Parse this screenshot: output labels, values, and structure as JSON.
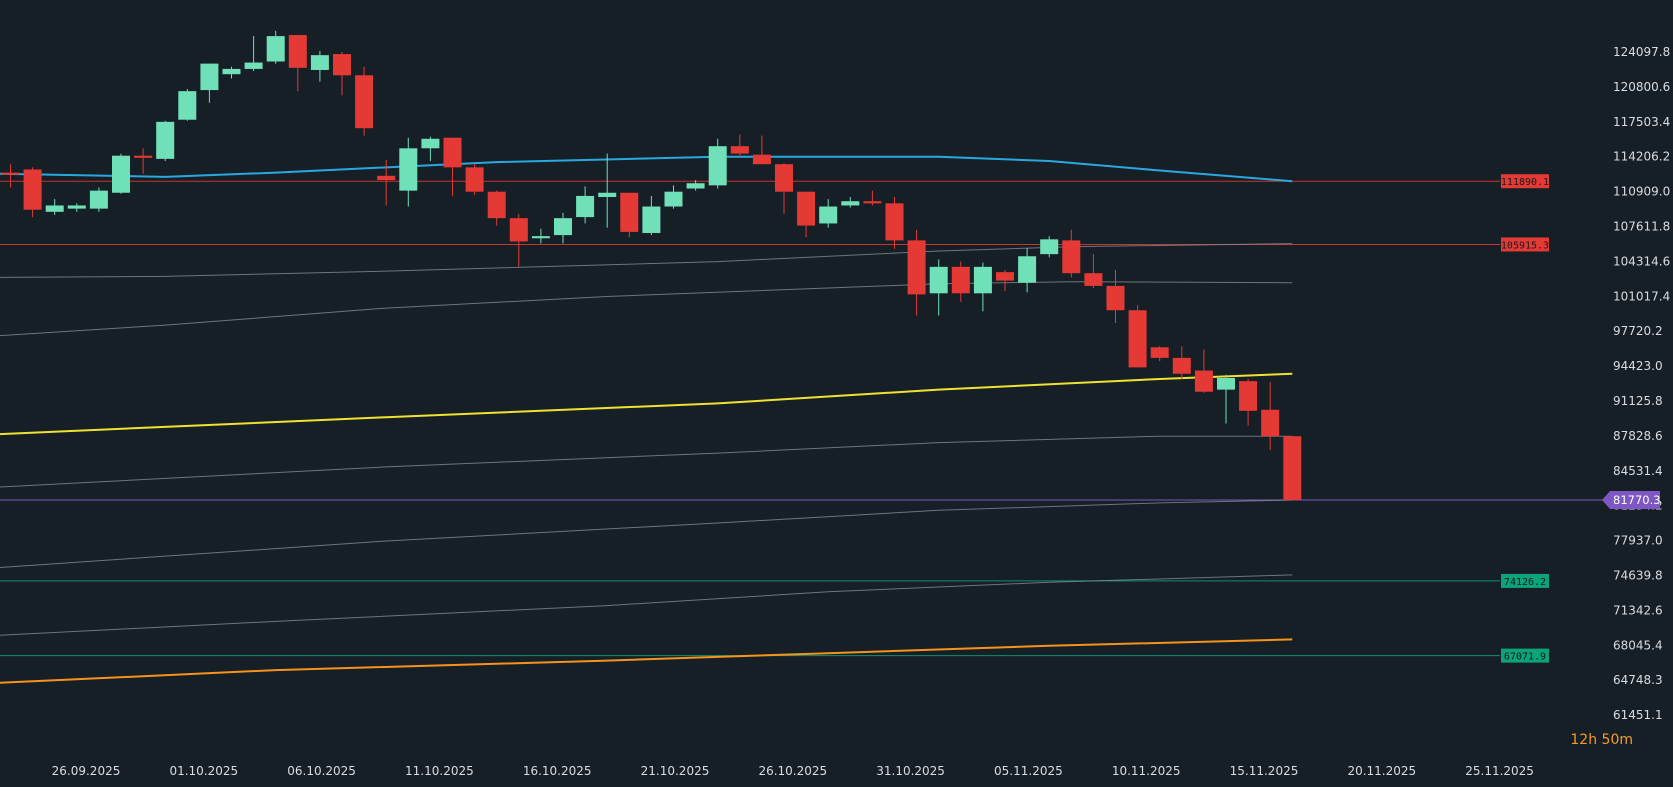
{
  "chart_data": {
    "type": "candlestick",
    "x_axis_labels": [
      "26.09.2025",
      "01.10.2025",
      "06.10.2025",
      "11.10.2025",
      "16.10.2025",
      "21.10.2025",
      "26.10.2025",
      "31.10.2025",
      "05.11.2025",
      "10.11.2025",
      "15.11.2025",
      "20.11.2025",
      "25.11.2025"
    ],
    "y_axis_labels": [
      "124097.8",
      "120800.6",
      "117503.4",
      "114206.2",
      "110909.0",
      "107611.8",
      "104314.6",
      "101017.4",
      "97720.2",
      "94423.0",
      "91125.8",
      "87828.6",
      "84531.4",
      "81234.2",
      "77937.0",
      "74639.8",
      "71342.6",
      "68045.4",
      "64748.3",
      "61451.1"
    ],
    "ylim": [
      61451.1,
      126000
    ],
    "start_date": "2025-09-22",
    "candles": [
      {
        "d": "2025-09-22",
        "o": 112700,
        "h": 113500,
        "l": 111300,
        "c": 112600
      },
      {
        "d": "2025-09-23",
        "o": 113000,
        "h": 113200,
        "l": 108500,
        "c": 109200
      },
      {
        "d": "2025-09-24",
        "o": 109000,
        "h": 110200,
        "l": 108700,
        "c": 109600
      },
      {
        "d": "2025-09-25",
        "o": 109300,
        "h": 109800,
        "l": 109000,
        "c": 109600
      },
      {
        "d": "2025-09-26",
        "o": 109300,
        "h": 111300,
        "l": 109000,
        "c": 111000
      },
      {
        "d": "2025-09-27",
        "o": 110800,
        "h": 114500,
        "l": 110700,
        "c": 114300
      },
      {
        "d": "2025-09-28",
        "o": 114300,
        "h": 115000,
        "l": 112600,
        "c": 114100
      },
      {
        "d": "2025-09-29",
        "o": 114000,
        "h": 117600,
        "l": 113800,
        "c": 117500
      },
      {
        "d": "2025-09-30",
        "o": 117700,
        "h": 120600,
        "l": 117600,
        "c": 120400
      },
      {
        "d": "2025-10-01",
        "o": 120500,
        "h": 123000,
        "l": 119300,
        "c": 123000
      },
      {
        "d": "2025-10-02",
        "o": 122000,
        "h": 122700,
        "l": 121600,
        "c": 122500
      },
      {
        "d": "2025-10-03",
        "o": 122500,
        "h": 125600,
        "l": 122300,
        "c": 123100
      },
      {
        "d": "2025-10-04",
        "o": 123200,
        "h": 126100,
        "l": 123000,
        "c": 125600
      },
      {
        "d": "2025-10-05",
        "o": 125700,
        "h": 125700,
        "l": 120400,
        "c": 122600
      },
      {
        "d": "2025-10-06",
        "o": 122400,
        "h": 124200,
        "l": 121300,
        "c": 123800
      },
      {
        "d": "2025-10-07",
        "o": 123900,
        "h": 124100,
        "l": 120000,
        "c": 121900
      },
      {
        "d": "2025-10-08",
        "o": 121900,
        "h": 122700,
        "l": 116200,
        "c": 116900
      },
      {
        "d": "2025-10-09",
        "o": 112400,
        "h": 113900,
        "l": 109600,
        "c": 112000
      },
      {
        "d": "2025-10-10",
        "o": 111000,
        "h": 116000,
        "l": 109500,
        "c": 115000
      },
      {
        "d": "2025-10-11",
        "o": 115000,
        "h": 116100,
        "l": 113800,
        "c": 115900
      },
      {
        "d": "2025-10-12",
        "o": 116000,
        "h": 116000,
        "l": 110500,
        "c": 113200
      },
      {
        "d": "2025-10-13",
        "o": 113200,
        "h": 113500,
        "l": 110600,
        "c": 110900
      },
      {
        "d": "2025-10-14",
        "o": 110900,
        "h": 111000,
        "l": 107700,
        "c": 108400
      },
      {
        "d": "2025-10-15",
        "o": 108400,
        "h": 108800,
        "l": 103800,
        "c": 106200
      },
      {
        "d": "2025-10-16",
        "o": 106500,
        "h": 107400,
        "l": 106000,
        "c": 106700
      },
      {
        "d": "2025-10-17",
        "o": 106800,
        "h": 108900,
        "l": 106000,
        "c": 108400
      },
      {
        "d": "2025-10-18",
        "o": 108500,
        "h": 111400,
        "l": 107900,
        "c": 110500
      },
      {
        "d": "2025-10-19",
        "o": 110400,
        "h": 114500,
        "l": 107500,
        "c": 110800
      },
      {
        "d": "2025-10-20",
        "o": 110800,
        "h": 110800,
        "l": 106600,
        "c": 107100
      },
      {
        "d": "2025-10-21",
        "o": 107000,
        "h": 110500,
        "l": 106800,
        "c": 109500
      },
      {
        "d": "2025-10-22",
        "o": 109500,
        "h": 111500,
        "l": 109300,
        "c": 110900
      },
      {
        "d": "2025-10-23",
        "o": 111200,
        "h": 112000,
        "l": 111000,
        "c": 111700
      },
      {
        "d": "2025-10-24",
        "o": 111500,
        "h": 115900,
        "l": 111200,
        "c": 115200
      },
      {
        "d": "2025-10-25",
        "o": 115200,
        "h": 116300,
        "l": 114100,
        "c": 114500
      },
      {
        "d": "2025-10-26",
        "o": 114400,
        "h": 116200,
        "l": 113500,
        "c": 113500
      },
      {
        "d": "2025-10-27",
        "o": 113500,
        "h": 113600,
        "l": 108800,
        "c": 110900
      },
      {
        "d": "2025-10-28",
        "o": 110900,
        "h": 110900,
        "l": 106600,
        "c": 107700
      },
      {
        "d": "2025-10-29",
        "o": 107900,
        "h": 110200,
        "l": 107500,
        "c": 109500
      },
      {
        "d": "2025-10-30",
        "o": 109600,
        "h": 110400,
        "l": 109400,
        "c": 110000
      },
      {
        "d": "2025-10-31",
        "o": 110000,
        "h": 111000,
        "l": 109600,
        "c": 109800
      },
      {
        "d": "2025-11-01",
        "o": 109800,
        "h": 110400,
        "l": 105500,
        "c": 106300
      },
      {
        "d": "2025-11-02",
        "o": 106300,
        "h": 107300,
        "l": 99200,
        "c": 101200
      },
      {
        "d": "2025-11-03",
        "o": 101300,
        "h": 104500,
        "l": 99200,
        "c": 103800
      },
      {
        "d": "2025-11-04",
        "o": 103800,
        "h": 104300,
        "l": 100500,
        "c": 101300
      },
      {
        "d": "2025-11-05",
        "o": 101300,
        "h": 104200,
        "l": 99600,
        "c": 103800
      },
      {
        "d": "2025-11-06",
        "o": 103300,
        "h": 103500,
        "l": 101500,
        "c": 102500
      },
      {
        "d": "2025-11-07",
        "o": 102300,
        "h": 105600,
        "l": 101400,
        "c": 104800
      },
      {
        "d": "2025-11-08",
        "o": 105000,
        "h": 106700,
        "l": 104700,
        "c": 106400
      },
      {
        "d": "2025-11-09",
        "o": 106300,
        "h": 107300,
        "l": 102800,
        "c": 103200
      },
      {
        "d": "2025-11-10",
        "o": 103200,
        "h": 105000,
        "l": 101800,
        "c": 102000
      },
      {
        "d": "2025-11-11",
        "o": 102000,
        "h": 103500,
        "l": 98500,
        "c": 99700
      },
      {
        "d": "2025-11-12",
        "o": 99700,
        "h": 100200,
        "l": 94800,
        "c": 94300
      },
      {
        "d": "2025-11-13",
        "o": 96200,
        "h": 96300,
        "l": 94900,
        "c": 95200
      },
      {
        "d": "2025-11-14",
        "o": 95200,
        "h": 96300,
        "l": 93200,
        "c": 93700
      },
      {
        "d": "2025-11-15",
        "o": 94000,
        "h": 96000,
        "l": 91900,
        "c": 92000
      },
      {
        "d": "2025-11-16",
        "o": 92200,
        "h": 93600,
        "l": 89000,
        "c": 93300
      },
      {
        "d": "2025-11-17",
        "o": 93000,
        "h": 93200,
        "l": 88800,
        "c": 90200
      },
      {
        "d": "2025-11-18",
        "o": 90300,
        "h": 92900,
        "l": 86500,
        "c": 87800
      },
      {
        "d": "2025-11-19",
        "o": 87800,
        "h": 87800,
        "l": 81800,
        "c": 81770.3
      }
    ],
    "moving_averages": [
      {
        "color": "#29a8e0",
        "points": [
          [
            "2025-09-22",
            112600
          ],
          [
            "2025-09-29",
            112300
          ],
          [
            "2025-10-04",
            112700
          ],
          [
            "2025-10-14",
            113700
          ],
          [
            "2025-10-24",
            114200
          ],
          [
            "2025-11-03",
            114200
          ],
          [
            "2025-11-08",
            113800
          ],
          [
            "2025-11-13",
            112900
          ],
          [
            "2025-11-19",
            111890
          ]
        ]
      },
      {
        "color": "#8a9398",
        "points": [
          [
            "2025-09-22",
            102800
          ],
          [
            "2025-09-29",
            102900
          ],
          [
            "2025-10-09",
            103400
          ],
          [
            "2025-10-24",
            104300
          ],
          [
            "2025-11-03",
            105300
          ],
          [
            "2025-11-09",
            105700
          ],
          [
            "2025-11-19",
            106000
          ]
        ]
      },
      {
        "color": "#8a9398",
        "points": [
          [
            "2025-09-22",
            97300
          ],
          [
            "2025-09-29",
            98300
          ],
          [
            "2025-10-09",
            99900
          ],
          [
            "2025-10-19",
            101000
          ],
          [
            "2025-10-29",
            101800
          ],
          [
            "2025-11-03",
            102200
          ],
          [
            "2025-11-09",
            102400
          ],
          [
            "2025-11-19",
            102300
          ]
        ]
      },
      {
        "color": "#f0e232",
        "points": [
          [
            "2025-09-22",
            88000
          ],
          [
            "2025-10-09",
            89600
          ],
          [
            "2025-10-24",
            90900
          ],
          [
            "2025-11-03",
            92200
          ],
          [
            "2025-11-13",
            93200
          ],
          [
            "2025-11-19",
            93700
          ]
        ]
      },
      {
        "color": "#8a9398",
        "points": [
          [
            "2025-09-22",
            83000
          ],
          [
            "2025-10-09",
            84900
          ],
          [
            "2025-10-24",
            86200
          ],
          [
            "2025-11-03",
            87200
          ],
          [
            "2025-11-13",
            87800
          ],
          [
            "2025-11-19",
            87800
          ]
        ]
      },
      {
        "color": "#8a9398",
        "points": [
          [
            "2025-09-22",
            75400
          ],
          [
            "2025-10-09",
            77900
          ],
          [
            "2025-10-24",
            79600
          ],
          [
            "2025-11-03",
            80800
          ],
          [
            "2025-11-13",
            81500
          ],
          [
            "2025-11-19",
            81770
          ]
        ]
      },
      {
        "color": "#8a9398",
        "points": [
          [
            "2025-09-22",
            69000
          ],
          [
            "2025-10-04",
            70300
          ],
          [
            "2025-10-19",
            71800
          ],
          [
            "2025-10-29",
            73100
          ],
          [
            "2025-11-08",
            74000
          ],
          [
            "2025-11-19",
            74700
          ]
        ]
      },
      {
        "color": "#f7931a",
        "points": [
          [
            "2025-09-22",
            64500
          ],
          [
            "2025-10-04",
            65700
          ],
          [
            "2025-10-19",
            66600
          ],
          [
            "2025-10-29",
            67300
          ],
          [
            "2025-11-08",
            68000
          ],
          [
            "2025-11-19",
            68600
          ]
        ]
      }
    ],
    "levels": [
      {
        "value": 111890.1,
        "label": "111890.1",
        "color": "#e53935"
      },
      {
        "value": 105915.3,
        "label": "105915.3",
        "color": "#e53935"
      },
      {
        "value": 74126.2,
        "label": "74126.2",
        "color": "#0aa37a"
      },
      {
        "value": 67071.9,
        "label": "67071.9",
        "color": "#0aa37a"
      }
    ],
    "current_price": {
      "value": 81770.3,
      "label": "81770.3",
      "color": "#7e57c2"
    },
    "colors": {
      "up": "#6fe0b8",
      "down": "#e53935",
      "background": "#161f25"
    }
  },
  "countdown": {
    "hours": "12",
    "h_unit": "h",
    "minutes": "50",
    "m_unit": "m"
  }
}
